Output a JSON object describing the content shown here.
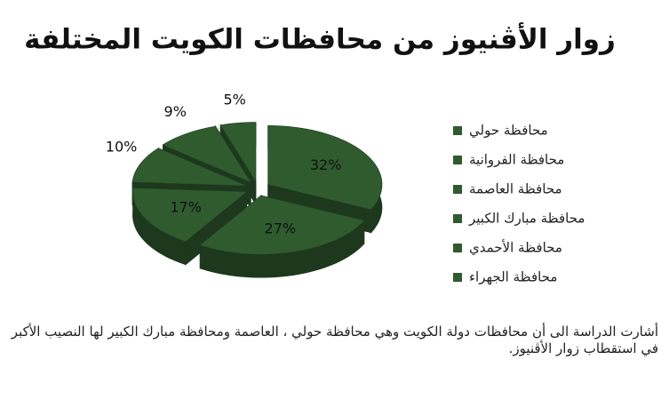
{
  "chart_data": {
    "type": "pie",
    "title": "زوار الأڤنيوز من محافظات الكويت المختلفة",
    "categories": [
      "محافظة حولي",
      "محافظة الفروانية",
      "محافظة العاصمة",
      "محافظة مبارك الكبير",
      "محافظة الأحمدي",
      "محافظة الجهراء"
    ],
    "values": [
      32,
      27,
      17,
      10,
      9,
      5
    ],
    "value_labels": [
      "32%",
      "27%",
      "17%",
      "10%",
      "9%",
      "5%"
    ],
    "color": "#2f5b2f",
    "legend": "right"
  },
  "caption": "أشارت الدراسة الى أن محافظات دولة الكويت وهي محافظة حولي ، العاصمة ومحافظة مبارك الكبير لها النصيب الأكبر في استقطاب زوار الأڤنيوز."
}
